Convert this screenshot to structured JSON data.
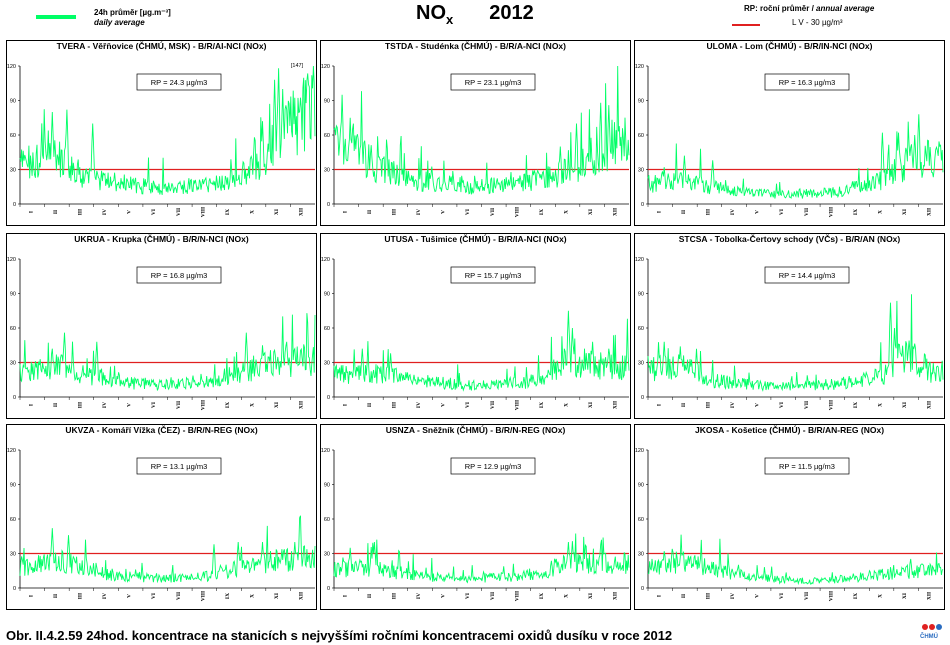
{
  "header": {
    "legend_daily_line1": "24h průměr [µg.m⁻³]",
    "legend_daily_line2": "daily average",
    "title_main": "NO",
    "title_sub": "x",
    "title_year": "2012",
    "legend_rp": "RP: roční průměr / ",
    "legend_rp_italic": "annual average",
    "legend_lv": "L V   - 30 µg/m³"
  },
  "colors": {
    "series": "#00ff66",
    "limit": "#e02020",
    "frame": "#000000"
  },
  "caption": "Obr. II.4.2.59  24hod. koncentrace na stanicích s nejvyššími ročními koncentracemi oxidů dusíku v roce 2012",
  "logo_text": "ČHMÚ",
  "chart_data": [
    {
      "type": "line",
      "title": "TVERA -  Věřňovice (ČHMÚ, MSK) - B/R/AI-NCI (NOx)",
      "annotation": "RP = 24.3 µg/m3",
      "peak_label": "[147]",
      "limit_value": 30,
      "ylim": [
        0,
        120
      ],
      "yticks": [
        0,
        30,
        60,
        90,
        120
      ],
      "xticks": [
        "I",
        "II",
        "III",
        "IV",
        "V",
        "VI",
        "VII",
        "VIII",
        "IX",
        "X",
        "XI",
        "XII"
      ],
      "monthly_values": [
        36,
        40,
        25,
        20,
        17,
        14,
        15,
        17,
        20,
        30,
        55,
        80
      ]
    },
    {
      "type": "line",
      "title": "TSTDA - Studénka (ČHMÚ) - B/R/A-NCI (NOx)",
      "annotation": "RP = 23.1 µg/m3",
      "limit_value": 30,
      "ylim": [
        0,
        120
      ],
      "yticks": [
        0,
        30,
        60,
        90,
        120
      ],
      "xticks": [
        "I",
        "II",
        "III",
        "IV",
        "V",
        "VI",
        "VII",
        "VIII",
        "IX",
        "X",
        "XI",
        "XII"
      ],
      "monthly_values": [
        55,
        35,
        25,
        20,
        18,
        15,
        16,
        18,
        22,
        28,
        45,
        55
      ]
    },
    {
      "type": "line",
      "title": "ULOMA - Lom (ČHMÚ) - B/R/IN-NCI (NOx)",
      "annotation": "RP = 16.3 µg/m3",
      "limit_value": 30,
      "ylim": [
        0,
        120
      ],
      "yticks": [
        0,
        30,
        60,
        90,
        120
      ],
      "xticks": [
        "I",
        "II",
        "III",
        "IV",
        "V",
        "VI",
        "VII",
        "VIII",
        "IX",
        "X",
        "XI",
        "XII"
      ],
      "monthly_values": [
        18,
        22,
        15,
        12,
        9,
        8,
        9,
        10,
        15,
        20,
        35,
        40
      ]
    },
    {
      "type": "line",
      "title": "UKRUA - Krupka (ČHMÚ) - B/R/N-NCI (NOx)",
      "annotation": "RP = 16.8 µg/m3",
      "limit_value": 30,
      "ylim": [
        0,
        120
      ],
      "yticks": [
        0,
        30,
        60,
        90,
        120
      ],
      "xticks": [
        "I",
        "II",
        "III",
        "IV",
        "V",
        "VI",
        "VII",
        "VIII",
        "IX",
        "X",
        "XI",
        "XII"
      ],
      "monthly_values": [
        22,
        30,
        20,
        15,
        12,
        10,
        12,
        14,
        18,
        25,
        30,
        32
      ]
    },
    {
      "type": "line",
      "title": "UTUSA - Tušimice (ČHMÚ) - B/R/IA-NCI (NOx)",
      "annotation": "RP = 15.7 µg/m3",
      "limit_value": 30,
      "ylim": [
        0,
        120
      ],
      "yticks": [
        0,
        30,
        60,
        90,
        120
      ],
      "xticks": [
        "I",
        "II",
        "III",
        "IV",
        "V",
        "VI",
        "VII",
        "VIII",
        "IX",
        "X",
        "XI",
        "XII"
      ],
      "monthly_values": [
        20,
        22,
        18,
        14,
        12,
        10,
        11,
        12,
        16,
        32,
        28,
        26
      ]
    },
    {
      "type": "line",
      "title": "STCSA - Tobolka-Čertovy schody (VČs) - B/R/AN (NOx)",
      "annotation": "RP = 14.4 µg/m3",
      "limit_value": 30,
      "ylim": [
        0,
        120
      ],
      "yticks": [
        0,
        30,
        60,
        90,
        120
      ],
      "xticks": [
        "I",
        "II",
        "III",
        "IV",
        "V",
        "VI",
        "VII",
        "VIII",
        "IX",
        "X",
        "XI",
        "XII"
      ],
      "monthly_values": [
        25,
        28,
        15,
        12,
        10,
        9,
        10,
        11,
        14,
        18,
        40,
        22
      ]
    },
    {
      "type": "line",
      "title": "UKVZA - Komáří Vížka (ČEZ) - B/R/N-REG (NOx)",
      "annotation": "RP = 13.1 µg/m3",
      "limit_value": 30,
      "ylim": [
        0,
        120
      ],
      "yticks": [
        0,
        30,
        60,
        90,
        120
      ],
      "xticks": [
        "I",
        "II",
        "III",
        "IV",
        "V",
        "VI",
        "VII",
        "VIII",
        "IX",
        "X",
        "XI",
        "XII"
      ],
      "monthly_values": [
        18,
        25,
        20,
        12,
        10,
        8,
        9,
        10,
        16,
        20,
        24,
        26
      ]
    },
    {
      "type": "line",
      "title": "USNZA - Sněžník (ČHMÚ) - B/R/N-REG (NOx)",
      "annotation": "RP = 12.9 µg/m3",
      "limit_value": 30,
      "ylim": [
        0,
        120
      ],
      "yticks": [
        0,
        30,
        60,
        90,
        120
      ],
      "xticks": [
        "I",
        "II",
        "III",
        "IV",
        "V",
        "VI",
        "VII",
        "VIII",
        "IX",
        "X",
        "XI",
        "XII"
      ],
      "monthly_values": [
        16,
        18,
        14,
        10,
        9,
        8,
        9,
        10,
        14,
        22,
        20,
        22
      ]
    },
    {
      "type": "line",
      "title": "JKOSA - Košetice (ČHMÚ) - B/R/AN-REG (NOx)",
      "annotation": "RP = 11.5 µg/m3",
      "limit_value": 30,
      "ylim": [
        0,
        120
      ],
      "yticks": [
        0,
        30,
        60,
        90,
        120
      ],
      "xticks": [
        "I",
        "II",
        "III",
        "IV",
        "V",
        "VI",
        "VII",
        "VIII",
        "IX",
        "X",
        "XI",
        "XII"
      ],
      "monthly_values": [
        18,
        25,
        18,
        12,
        9,
        7,
        6,
        7,
        9,
        12,
        14,
        15
      ]
    }
  ]
}
